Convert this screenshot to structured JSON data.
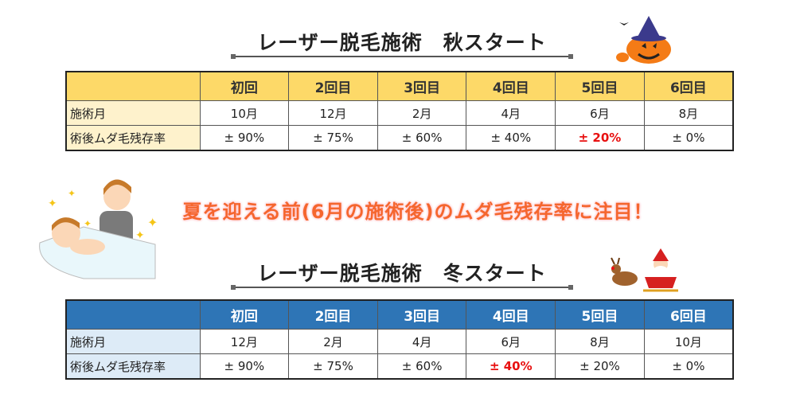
{
  "autumn": {
    "title": "レーザー脱毛施術　秋スタート",
    "headers": [
      "",
      "初回",
      "2回目",
      "3回目",
      "4回目",
      "5回目",
      "6回目"
    ],
    "rows": [
      {
        "label": "施術月",
        "values": [
          "10月",
          "12月",
          "2月",
          "4月",
          "6月",
          "8月"
        ]
      },
      {
        "label": "術後ムダ毛残存率",
        "values": [
          "± 90%",
          "± 75%",
          "± 60%",
          "± 40%",
          "± 20%",
          "± 0%"
        ]
      }
    ],
    "highlight_col": 4
  },
  "banner": "夏を迎える前(6月の施術後)のムダ毛残存率に注目！",
  "winter": {
    "title": "レーザー脱毛施術　冬スタート",
    "headers": [
      "",
      "初回",
      "2回目",
      "3回目",
      "4回目",
      "5回目",
      "6回目"
    ],
    "rows": [
      {
        "label": "施術月",
        "values": [
          "12月",
          "2月",
          "4月",
          "6月",
          "8月",
          "10月"
        ]
      },
      {
        "label": "術後ムダ毛残存率",
        "values": [
          "± 90%",
          "± 75%",
          "± 60%",
          "± 40%",
          "± 20%",
          "± 0%"
        ]
      }
    ],
    "highlight_col": 3
  },
  "colors": {
    "autumn_header": "#fdd968",
    "winter_header": "#2e75b6",
    "highlight": "#e81010",
    "banner": "#f5662e"
  }
}
